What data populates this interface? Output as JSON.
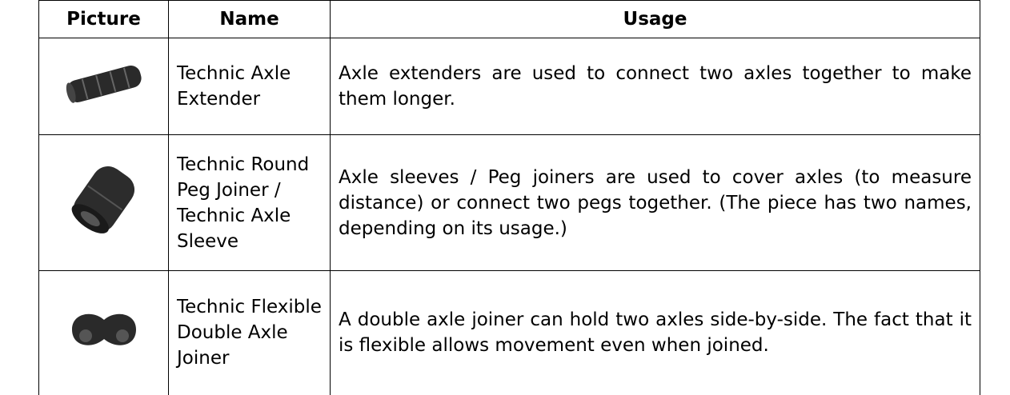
{
  "table": {
    "header": [
      "Picture",
      "Name",
      "Usage"
    ],
    "rows": [
      {
        "name": "Technic Axle Extender",
        "usage": "Axle extenders are used to connect two axles together to make them longer."
      },
      {
        "name": "Technic Round Peg Joiner / Technic Axle Sleeve",
        "usage": "Axle sleeves / Peg joiners are used to cover axles (to measure distance) or connect two pegs together. (The piece has two names, depending on its usage.)"
      },
      {
        "name": "Technic Flexible Double Axle Joiner",
        "usage": "A double axle joiner can hold two axles side-by-side. The fact that it is flexible allows movement even when joined."
      }
    ]
  }
}
